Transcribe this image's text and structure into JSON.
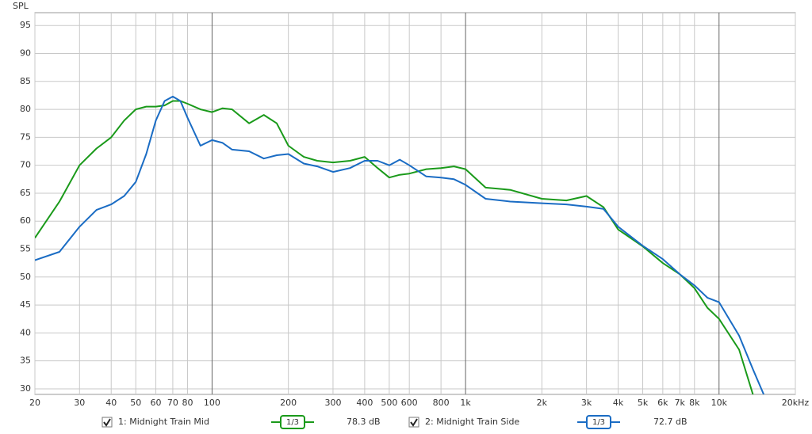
{
  "chart_data": {
    "type": "line",
    "y_label": "SPL",
    "log_x": true,
    "grid": true,
    "xlim": [
      20,
      20000
    ],
    "ylim": [
      29,
      97.3
    ],
    "xticks": [
      20,
      30,
      40,
      50,
      60,
      70,
      80,
      100,
      200,
      300,
      400,
      500,
      600,
      800,
      {
        "value": 1000,
        "label": "1k"
      },
      {
        "value": 2000,
        "label": "2k"
      },
      {
        "value": 3000,
        "label": "3k"
      },
      {
        "value": 4000,
        "label": "4k"
      },
      {
        "value": 5000,
        "label": "5k"
      },
      {
        "value": 6000,
        "label": "6k"
      },
      {
        "value": 7000,
        "label": "7k"
      },
      {
        "value": 8000,
        "label": "8k"
      },
      {
        "value": 10000,
        "label": "10k"
      },
      {
        "value": 20000,
        "label": "20kHz"
      }
    ],
    "yticks": [
      30,
      35,
      40,
      45,
      50,
      55,
      60,
      65,
      70,
      75,
      80,
      85,
      90,
      95
    ],
    "x": [
      20,
      25,
      30,
      35,
      40,
      45,
      50,
      55,
      60,
      65,
      70,
      75,
      80,
      90,
      100,
      110,
      120,
      140,
      160,
      180,
      200,
      230,
      260,
      300,
      350,
      400,
      450,
      500,
      550,
      600,
      700,
      800,
      900,
      1000,
      1200,
      1500,
      2000,
      2500,
      3000,
      3500,
      4000,
      5000,
      6000,
      7000,
      8000,
      9000,
      10000,
      12000,
      13600,
      15000
    ],
    "series": [
      {
        "name": "1: Midnight Train Mid",
        "color": "#1a9a1a",
        "checked": true,
        "smoothing": "1/3",
        "level": "78.3 dB",
        "values": [
          57,
          63.5,
          70,
          73,
          75,
          78,
          80,
          80.5,
          80.5,
          80.7,
          81.5,
          81.5,
          81,
          80,
          79.5,
          80.2,
          80,
          77.5,
          79,
          77.5,
          73.5,
          71.5,
          70.8,
          70.5,
          70.8,
          71.5,
          69.5,
          67.8,
          68.3,
          68.5,
          69.3,
          69.5,
          69.8,
          69.3,
          66,
          65.6,
          64,
          63.7,
          64.5,
          62.5,
          58.5,
          55.5,
          52.5,
          50.5,
          48,
          44.5,
          42.5,
          37,
          29,
          null
        ]
      },
      {
        "name": "2: Midnight Train Side",
        "color": "#1a6cc4",
        "checked": true,
        "smoothing": "1/3",
        "level": "72.7 dB",
        "values": [
          53,
          54.5,
          59,
          62,
          63,
          64.5,
          67,
          72,
          78,
          81.5,
          82.3,
          81.5,
          78.5,
          73.5,
          74.5,
          74,
          72.8,
          72.5,
          71.2,
          71.8,
          72,
          70.3,
          69.8,
          68.8,
          69.5,
          70.8,
          70.8,
          70,
          71,
          70,
          68,
          67.8,
          67.5,
          66.5,
          64,
          63.5,
          63.2,
          63,
          62.6,
          62.2,
          59,
          55.6,
          53.2,
          50.5,
          48.5,
          46.3,
          45.5,
          39.5,
          33.5,
          29
        ]
      }
    ]
  }
}
